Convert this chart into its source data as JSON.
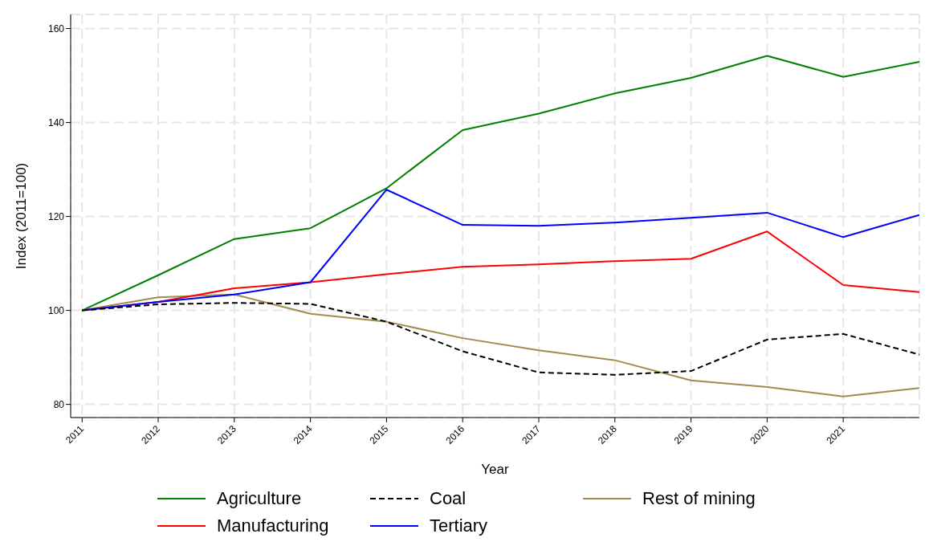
{
  "chart_data": {
    "type": "line",
    "xlabel": "Year",
    "ylabel": "Index (2011=100)",
    "x": [
      2011,
      2012,
      2013,
      2014,
      2015,
      2016,
      2017,
      2018,
      2019,
      2020,
      2021,
      2022
    ],
    "xlim": [
      2010.85,
      2022
    ],
    "xticks": [
      2011,
      2012,
      2013,
      2014,
      2015,
      2016,
      2017,
      2018,
      2019,
      2020,
      2021
    ],
    "ylim": [
      77.2,
      163
    ],
    "yticks": [
      80,
      100,
      120,
      140,
      160
    ],
    "grid": true,
    "legend": "bottom",
    "marker": "none",
    "series": [
      {
        "name": "Agriculture",
        "color": "#008000",
        "line_style": "solid",
        "values": [
          100,
          107.5,
          115.2,
          117.5,
          126.0,
          138.4,
          141.9,
          146.2,
          149.5,
          154.2,
          149.7,
          152.9
        ]
      },
      {
        "name": "Coal",
        "color": "#000000",
        "line_style": "dashed",
        "values": [
          100,
          101.3,
          101.6,
          101.4,
          97.6,
          91.3,
          86.8,
          86.3,
          87.1,
          93.8,
          95.0,
          90.6
        ]
      },
      {
        "name": "Rest of mining",
        "color": "#a08c50",
        "line_style": "solid",
        "values": [
          100,
          102.8,
          103.4,
          99.3,
          97.6,
          94.1,
          91.5,
          89.4,
          85.1,
          83.7,
          81.7,
          83.5
        ]
      },
      {
        "name": "Manufacturing",
        "color": "#ff0000",
        "line_style": "solid",
        "values": [
          100,
          101.8,
          104.7,
          106.0,
          107.7,
          109.3,
          109.8,
          110.5,
          111.0,
          116.8,
          105.4,
          103.9
        ]
      },
      {
        "name": "Tertiary",
        "color": "#0000ff",
        "line_style": "solid",
        "values": [
          100,
          101.8,
          103.4,
          106.0,
          125.7,
          118.2,
          118.0,
          118.7,
          119.7,
          120.8,
          115.6,
          120.3
        ]
      }
    ]
  }
}
